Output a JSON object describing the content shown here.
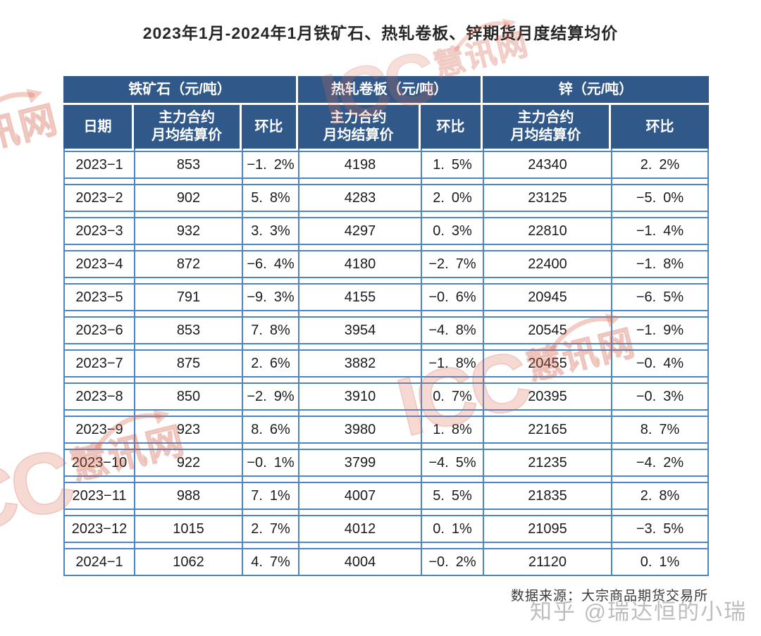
{
  "title": "2023年1月-2024年1月铁矿石、热轧卷板、锌期货月度结算均价",
  "table": {
    "header_date": "日期",
    "header_price": "主力合约\n月均结算价",
    "header_mom": "环比"
  },
  "chart_data": {
    "type": "table",
    "title": "2023年1月-2024年1月铁矿石、热轧卷板、锌期货月度结算均价",
    "column_groups": [
      "铁矿石（元/吨）",
      "热轧卷板（元/吨）",
      "锌（元/吨）"
    ],
    "columns": [
      "日期",
      "铁矿石主力合约月均结算价",
      "铁矿石环比",
      "热轧卷板主力合约月均结算价",
      "热轧卷板环比",
      "锌主力合约月均结算价",
      "锌环比"
    ],
    "rows": [
      [
        "2023-1",
        853,
        "-1.2%",
        4198,
        "1.5%",
        24340,
        "2.2%"
      ],
      [
        "2023-2",
        902,
        "5.8%",
        4283,
        "2.0%",
        23125,
        "-5.0%"
      ],
      [
        "2023-3",
        932,
        "3.3%",
        4297,
        "0.3%",
        22810,
        "-1.4%"
      ],
      [
        "2023-4",
        872,
        "-6.4%",
        4180,
        "-2.7%",
        22400,
        "-1.8%"
      ],
      [
        "2023-5",
        791,
        "-9.3%",
        4155,
        "-0.6%",
        20945,
        "-6.5%"
      ],
      [
        "2023-6",
        853,
        "7.8%",
        3954,
        "-4.8%",
        20545,
        "-1.9%"
      ],
      [
        "2023-7",
        875,
        "2.6%",
        3882,
        "-1.8%",
        20455,
        "-0.4%"
      ],
      [
        "2023-8",
        850,
        "-2.9%",
        3910,
        "0.7%",
        20395,
        "-0.3%"
      ],
      [
        "2023-9",
        923,
        "8.6%",
        3980,
        "1.8%",
        22165,
        "8.7%"
      ],
      [
        "2023-10",
        922,
        "-0.1%",
        3799,
        "-4.5%",
        21235,
        "-4.2%"
      ],
      [
        "2023-11",
        988,
        "7.1%",
        4007,
        "5.5%",
        21835,
        "2.8%"
      ],
      [
        "2023-12",
        1015,
        "2.7%",
        4012,
        "0.1%",
        21095,
        "-3.5%"
      ],
      [
        "2024-1",
        1062,
        "4.7%",
        4004,
        "-0.2%",
        21120,
        "0.1%"
      ]
    ],
    "source_note": "数据来源：大宗商品期货交易所"
  },
  "footer": {
    "source": "数据来源：大宗商品期货交易所"
  },
  "watermarks": {
    "icc": "ICC",
    "cn": "慧讯网",
    "zhihu": "知乎 @瑞达恒的小瑞"
  },
  "colors": {
    "header_bg": "#30598a",
    "table_border": "#4a86c6",
    "watermark_red": "#dd6b52",
    "zhihu_gray": "#919191"
  }
}
